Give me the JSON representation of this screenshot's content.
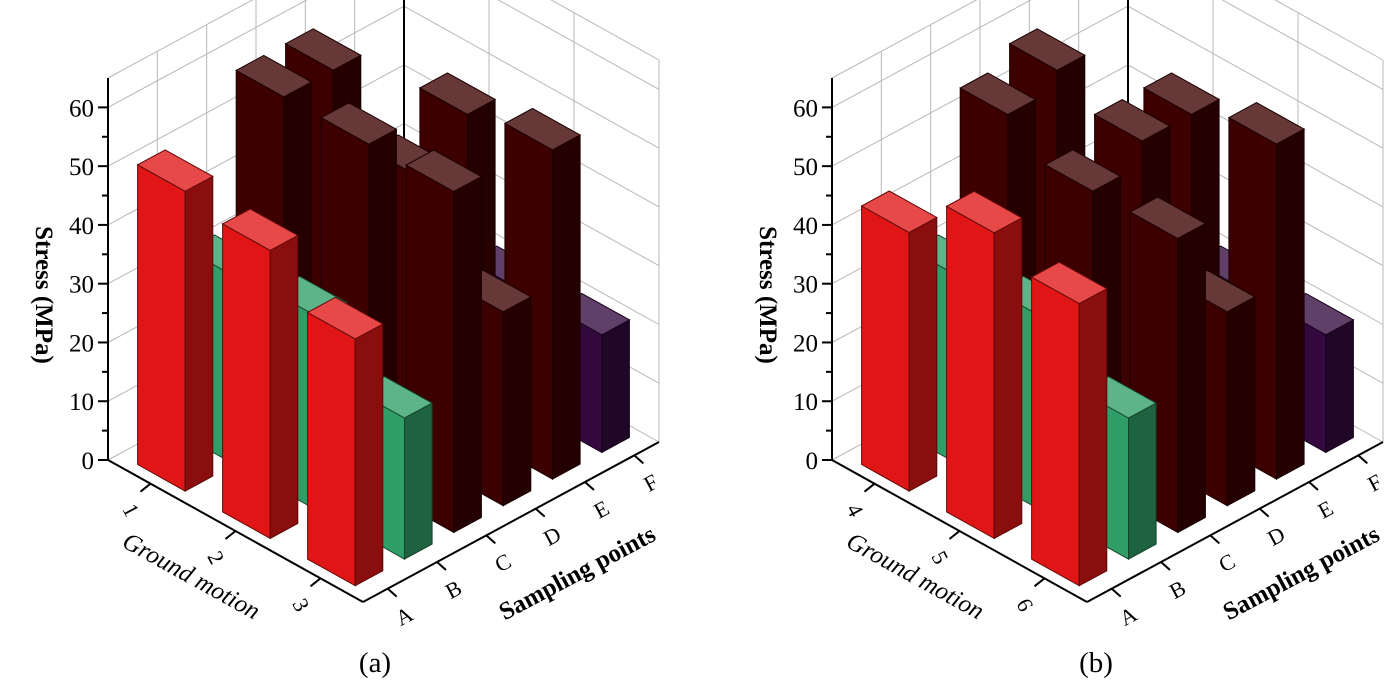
{
  "chart_data": [
    {
      "type": "bar3d",
      "panel_label": "(a)",
      "zlabel": "Stress (MPa)",
      "xlabel": "Ground motion",
      "ylabel": "Sampling points",
      "zlim": [
        0,
        65
      ],
      "zticks": [
        0,
        10,
        20,
        30,
        40,
        50,
        60
      ],
      "ground_motions": [
        "1",
        "2",
        "3"
      ],
      "sampling_points": [
        "A",
        "B",
        "C",
        "D",
        "E",
        "F"
      ],
      "series": [
        {
          "name": "1",
          "values": [
            51,
            32,
            58,
            58,
            21,
            20
          ]
        },
        {
          "name": "2",
          "values": [
            49,
            33,
            58,
            48,
            54,
            20
          ]
        },
        {
          "name": "3",
          "values": [
            42,
            24,
            58,
            33,
            56,
            20
          ]
        }
      ],
      "bar_colors": {
        "A": "#e01616",
        "B": "#2f9f67",
        "C": "#3c0000",
        "D": "#3c0000",
        "E": "#3c0000",
        "F": "#33093f"
      }
    },
    {
      "type": "bar3d",
      "panel_label": "(b)",
      "zlabel": "Stress (MPa)",
      "xlabel": "Ground motion",
      "ylabel": "Sampling points",
      "zlim": [
        0,
        65
      ],
      "zticks": [
        0,
        10,
        20,
        30,
        40,
        50,
        60
      ],
      "ground_motions": [
        "4",
        "5",
        "6"
      ],
      "sampling_points": [
        "A",
        "B",
        "C",
        "D",
        "E",
        "F"
      ],
      "series": [
        {
          "name": "4",
          "values": [
            44,
            32,
            55,
            58,
            28,
            22
          ]
        },
        {
          "name": "5",
          "values": [
            52,
            33,
            50,
            54,
            54,
            20
          ]
        },
        {
          "name": "6",
          "values": [
            48,
            24,
            50,
            33,
            57,
            20
          ]
        }
      ],
      "bar_colors": {
        "A": "#e01616",
        "B": "#2f9f67",
        "C": "#3c0000",
        "D": "#3c0000",
        "E": "#3c0000",
        "F": "#33093f"
      }
    }
  ]
}
